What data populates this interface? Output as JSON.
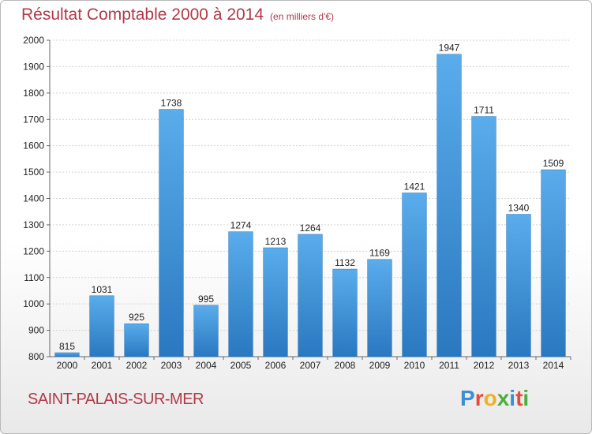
{
  "header": {
    "title": "Résultat Comptable 2000 à 2014",
    "subtitle": "(en milliers d'€)"
  },
  "footer": {
    "place": "SAINT-PALAIS-SUR-MER",
    "logo_letters": [
      "P",
      "r",
      "o",
      "x",
      "i",
      "t",
      "i"
    ],
    "logo_colors": [
      "#3a8fd6",
      "#e84a3a",
      "#f2b01e",
      "#4cae3c",
      "#3a8fd6",
      "#e84a3a",
      "#4cae3c"
    ]
  },
  "chart_data": {
    "type": "bar",
    "title": "Résultat Comptable 2000 à 2014",
    "categories": [
      "2000",
      "2001",
      "2002",
      "2003",
      "2004",
      "2005",
      "2006",
      "2007",
      "2008",
      "2009",
      "2010",
      "2011",
      "2012",
      "2013",
      "2014"
    ],
    "values": [
      815,
      1031,
      925,
      1738,
      995,
      1274,
      1213,
      1264,
      1132,
      1169,
      1421,
      1947,
      1711,
      1340,
      1509
    ],
    "ylim": [
      800,
      2000
    ],
    "yticks": [
      800,
      900,
      1000,
      1100,
      1200,
      1300,
      1400,
      1500,
      1600,
      1700,
      1800,
      1900,
      2000
    ],
    "grid": true,
    "bar_color": "#3a93dd",
    "xlabel": "",
    "ylabel": ""
  }
}
